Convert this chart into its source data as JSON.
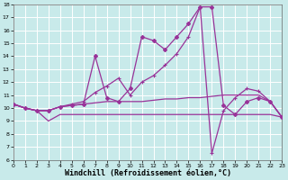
{
  "background_color": "#c8eaea",
  "grid_color": "#ffffff",
  "line_color": "#993399",
  "xlabel": "Windchill (Refroidissement éolien,°C)",
  "xlabel_fontsize": 6,
  "xlim": [
    0,
    23
  ],
  "ylim": [
    6,
    18
  ],
  "xticks": [
    0,
    1,
    2,
    3,
    4,
    5,
    6,
    7,
    8,
    9,
    10,
    11,
    12,
    13,
    14,
    15,
    16,
    17,
    18,
    19,
    20,
    21,
    22,
    23
  ],
  "yticks": [
    6,
    7,
    8,
    9,
    10,
    11,
    12,
    13,
    14,
    15,
    16,
    17,
    18
  ],
  "s1_x": [
    0,
    1,
    2,
    3,
    4,
    5,
    6,
    7,
    8,
    9,
    10,
    11,
    12,
    13,
    14,
    15,
    16,
    17,
    18,
    19,
    20,
    21,
    22,
    23
  ],
  "s1_y": [
    10.3,
    10.0,
    9.8,
    9.0,
    9.5,
    9.5,
    9.5,
    9.5,
    9.5,
    9.5,
    9.5,
    9.5,
    9.5,
    9.5,
    9.5,
    9.5,
    9.5,
    9.5,
    9.5,
    9.5,
    9.5,
    9.5,
    9.5,
    9.3
  ],
  "s2_x": [
    0,
    1,
    2,
    3,
    4,
    5,
    6,
    7,
    8,
    9,
    10,
    11,
    12,
    13,
    14,
    15,
    16,
    17,
    18,
    19,
    20,
    21,
    22,
    23
  ],
  "s2_y": [
    10.3,
    10.0,
    9.8,
    9.8,
    10.1,
    10.2,
    10.3,
    10.4,
    10.5,
    10.5,
    10.5,
    10.5,
    10.6,
    10.7,
    10.7,
    10.8,
    10.8,
    10.9,
    11.0,
    11.0,
    11.0,
    11.0,
    10.5,
    9.3
  ],
  "s3_x": [
    0,
    1,
    2,
    3,
    4,
    5,
    6,
    7,
    8,
    9,
    10,
    11,
    12,
    13,
    14,
    15,
    16,
    17,
    18,
    19,
    20,
    21,
    22,
    23
  ],
  "s3_y": [
    10.3,
    10.0,
    9.8,
    9.8,
    10.1,
    10.3,
    10.5,
    11.2,
    11.7,
    12.3,
    11.0,
    12.0,
    12.5,
    13.3,
    14.2,
    15.5,
    17.8,
    6.5,
    9.8,
    10.8,
    11.5,
    11.3,
    10.5,
    9.3
  ],
  "s4_x": [
    0,
    1,
    2,
    3,
    4,
    5,
    6,
    7,
    8,
    9,
    10,
    11,
    12,
    13,
    14,
    15,
    16,
    17,
    18,
    19,
    20,
    21,
    22,
    23
  ],
  "s4_y": [
    10.3,
    10.0,
    9.8,
    9.8,
    10.1,
    10.2,
    10.3,
    14.0,
    10.8,
    10.5,
    11.5,
    15.5,
    15.2,
    14.5,
    15.5,
    16.5,
    17.8,
    17.8,
    10.2,
    9.5,
    10.5,
    10.8,
    10.5,
    9.3
  ]
}
